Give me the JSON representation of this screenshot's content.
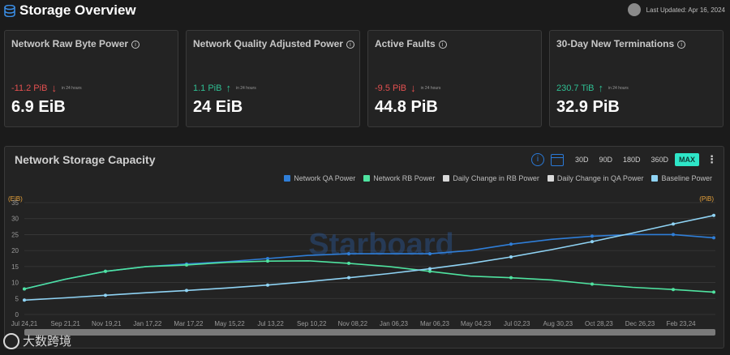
{
  "header": {
    "title": "Storage Overview",
    "last_updated": "Last Updated: Apr 16, 2024"
  },
  "cards": [
    {
      "title": "Network Raw Byte Power",
      "change": "-11.2 PiB",
      "direction": "down",
      "period": "in 24 hours",
      "value": "6.9 EiB"
    },
    {
      "title": "Network Quality Adjusted Power",
      "change": "1.1 PiB",
      "direction": "up",
      "period": "in 24 hours",
      "value": "24 EiB"
    },
    {
      "title": "Active Faults",
      "change": "-9.5 PiB",
      "direction": "down",
      "period": "in 24 hours",
      "value": "44.8 PiB"
    },
    {
      "title": "30-Day New Terminations",
      "change": "230.7 TiB",
      "direction": "up",
      "period": "in 24 hours",
      "value": "32.9 PiB"
    }
  ],
  "chart_panel": {
    "title": "Network Storage Capacity",
    "ranges": [
      "30D",
      "90D",
      "180D",
      "360D",
      "MAX"
    ],
    "active_range": "MAX",
    "watermark": "Starboard"
  },
  "footer_watermark": "大数跨境",
  "chart_data": {
    "type": "line",
    "x_ticks": [
      "Jul 24,21",
      "Sep 21,21",
      "Nov 19,21",
      "Jan 17,22",
      "Mar 17,22",
      "May 15,22",
      "Jul 13,22",
      "Sep 10,22",
      "Nov 08,22",
      "Jan 06,23",
      "Mar 06,23",
      "May 04,23",
      "Jul 02,23",
      "Aug 30,23",
      "Oct 28,23",
      "Dec 26,23",
      "Feb 23,24"
    ],
    "y_left": {
      "label": "(EiB)",
      "ticks": [
        0,
        5,
        10,
        15,
        20,
        25,
        30,
        35
      ],
      "range": [
        0,
        35
      ]
    },
    "y_right": {
      "label": "(PiB)"
    },
    "legend": [
      {
        "name": "Network QA Power",
        "color": "#2f7ed8"
      },
      {
        "name": "Network RB Power",
        "color": "#4fe3a0"
      },
      {
        "name": "Daily Change in RB Power",
        "color": "#d9d9d9"
      },
      {
        "name": "Daily Change in QA Power",
        "color": "#d9d9d9"
      },
      {
        "name": "Baseline Power",
        "color": "#8fd3f4"
      }
    ],
    "series": [
      {
        "name": "Network QA Power",
        "color": "#2f7ed8",
        "values": [
          8,
          11,
          13.5,
          15,
          15.8,
          16.5,
          17.5,
          18.5,
          19,
          19,
          19,
          20,
          22,
          23.5,
          24.5,
          25,
          25,
          24
        ]
      },
      {
        "name": "Network RB Power",
        "color": "#4fe3a0",
        "values": [
          8,
          11,
          13.5,
          15,
          15.5,
          16.3,
          16.7,
          16.8,
          16,
          15,
          13.5,
          12,
          11.5,
          10.8,
          9.5,
          8.5,
          7.8,
          7
        ]
      },
      {
        "name": "Baseline Power",
        "color": "#8fd3f4",
        "values": [
          4.5,
          5.2,
          6,
          6.8,
          7.5,
          8.3,
          9.2,
          10.3,
          11.5,
          12.8,
          14.3,
          16,
          18,
          20.3,
          22.8,
          25.5,
          28.3,
          31
        ]
      }
    ]
  }
}
